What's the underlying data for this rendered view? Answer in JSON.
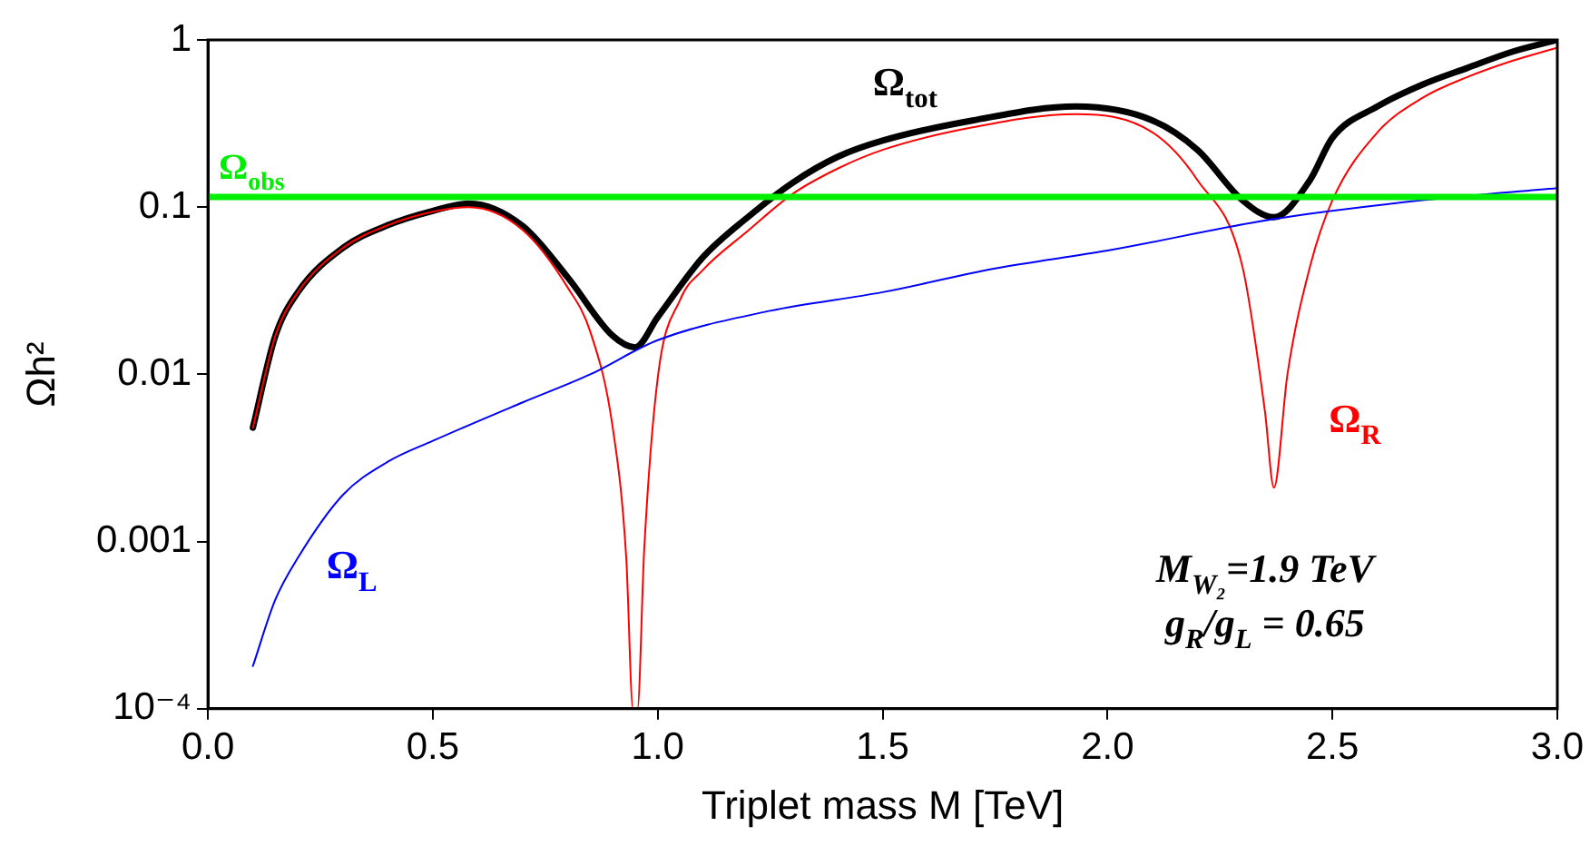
{
  "chart_data": {
    "type": "line",
    "xlabel": "Triplet mass M [TeV]",
    "ylabel": "Ωh²",
    "log": "y",
    "xlim": [
      0,
      3
    ],
    "xticks": [
      {
        "value": 0,
        "label": "0.0"
      },
      {
        "value": 0.5,
        "label": "0.5"
      },
      {
        "value": 1,
        "label": "1.0"
      },
      {
        "value": 1.5,
        "label": "1.5"
      },
      {
        "value": 2,
        "label": "2.0"
      },
      {
        "value": 2.5,
        "label": "2.5"
      },
      {
        "value": 3,
        "label": "3.0"
      }
    ],
    "ylim": [
      0.0001,
      1
    ],
    "yticks": [
      {
        "value": 0.0001,
        "label": "10⁻⁴"
      },
      0.001,
      0.01,
      0.1,
      1
    ],
    "grid": false,
    "legend": false,
    "marker": "none",
    "line_style": "solid",
    "series": [
      {
        "name": "Ω$_{tot}$",
        "color": "#000000",
        "x": [
          0.1,
          0.15,
          0.2,
          0.3,
          0.4,
          0.5,
          0.58,
          0.7,
          0.8,
          0.9,
          0.95,
          1.0,
          1.1,
          1.2,
          1.3,
          1.4,
          1.5,
          1.7,
          1.93,
          2.1,
          2.2,
          2.3,
          2.37,
          2.45,
          2.5,
          2.6,
          2.7,
          2.8,
          2.9,
          3.0
        ],
        "values": [
          0.0048,
          0.017,
          0.031,
          0.057,
          0.078,
          0.095,
          0.105,
          0.077,
          0.038,
          0.017,
          0.0145,
          0.022,
          0.05,
          0.087,
          0.14,
          0.2,
          0.25,
          0.33,
          0.4,
          0.33,
          0.22,
          0.11,
          0.087,
          0.145,
          0.26,
          0.4,
          0.54,
          0.68,
          0.85,
          1.0
        ]
      },
      {
        "name": "Ω$_{R}$",
        "color": "#ff0000",
        "x": [
          0.1,
          0.15,
          0.2,
          0.3,
          0.4,
          0.5,
          0.58,
          0.7,
          0.8,
          0.85,
          0.9,
          0.93,
          0.945,
          0.955,
          0.97,
          1.0,
          1.05,
          1.1,
          1.2,
          1.3,
          1.4,
          1.5,
          1.7,
          1.93,
          2.1,
          2.2,
          2.3,
          2.35,
          2.37,
          2.4,
          2.45,
          2.5,
          2.6,
          2.7,
          2.8,
          2.9,
          3.0
        ],
        "values": [
          0.0048,
          0.017,
          0.031,
          0.057,
          0.078,
          0.094,
          0.1,
          0.073,
          0.033,
          0.018,
          0.0048,
          0.0008,
          0.0001,
          0.0001,
          0.0009,
          0.0095,
          0.028,
          0.042,
          0.072,
          0.12,
          0.17,
          0.22,
          0.3,
          0.36,
          0.28,
          0.145,
          0.044,
          0.006,
          0.0021,
          0.01,
          0.044,
          0.11,
          0.28,
          0.45,
          0.6,
          0.75,
          0.9
        ]
      },
      {
        "name": "Ω$_{L}$",
        "color": "#0000ff",
        "x": [
          0.1,
          0.15,
          0.2,
          0.3,
          0.4,
          0.5,
          0.7,
          0.85,
          1.0,
          1.25,
          1.5,
          1.75,
          2.0,
          2.37,
          2.7,
          3.0
        ],
        "values": [
          0.00018,
          0.00045,
          0.0008,
          0.0019,
          0.003,
          0.004,
          0.0068,
          0.01,
          0.016,
          0.024,
          0.031,
          0.043,
          0.055,
          0.085,
          0.11,
          0.13
        ]
      }
    ],
    "ref_lines": [
      {
        "axis": "y",
        "value": 0.115,
        "label": "Ω$_{obs}$",
        "color": "#00ee00"
      }
    ],
    "annotations": [
      "M$_{W₂}$=1.9 TeV",
      "g$_{R}$/g$_{L}$ = 0.65"
    ]
  }
}
